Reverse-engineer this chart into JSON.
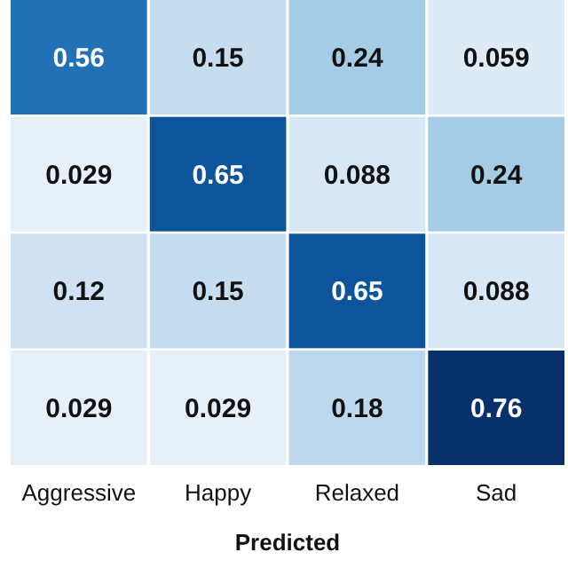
{
  "chart_data": {
    "type": "heatmap",
    "xlabel": "Predicted",
    "categories": [
      "Aggressive",
      "Happy",
      "Relaxed",
      "Sad"
    ],
    "y_categories": [
      null,
      null,
      null,
      null
    ],
    "cells": [
      [
        0.56,
        0.15,
        0.24,
        0.059
      ],
      [
        0.029,
        0.65,
        0.088,
        0.24
      ],
      [
        0.12,
        0.15,
        0.65,
        0.088
      ],
      [
        0.029,
        0.029,
        0.18,
        0.76
      ]
    ],
    "data_labels": true
  }
}
